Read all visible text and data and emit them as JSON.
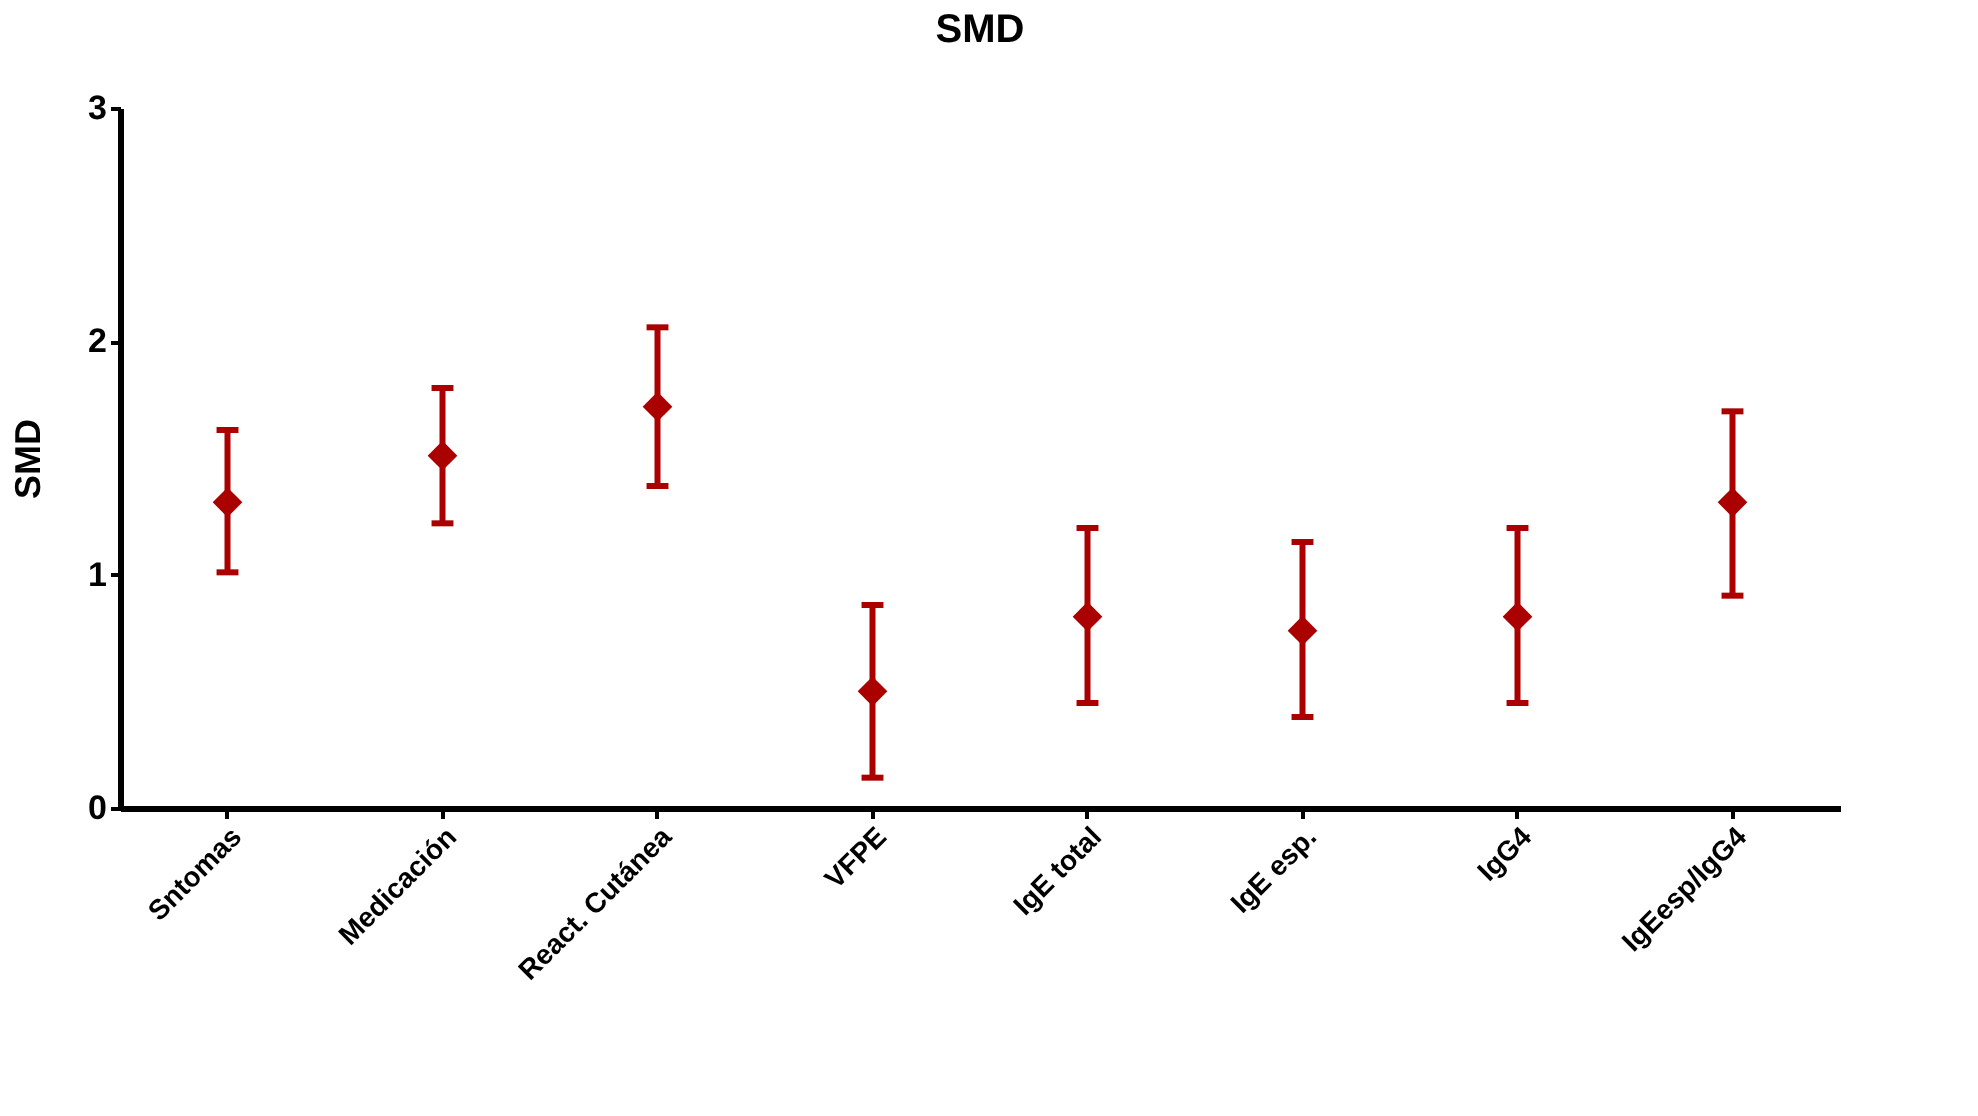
{
  "chart_data": {
    "type": "scatter",
    "title": "SMD",
    "ylabel": "SMD",
    "categories": [
      "Sntomas",
      "Medicación",
      "React. Cutánea",
      "VFPE",
      "IgE total",
      "IgE esp.",
      "IgG4",
      "IgEesp/IgG4"
    ],
    "series": [
      {
        "color": "#aa0000",
        "values": [
          1.31,
          1.51,
          1.72,
          0.5,
          0.82,
          0.76,
          0.82,
          1.31
        ],
        "errors": [
          [
            1.01,
            1.62
          ],
          [
            1.22,
            1.8
          ],
          [
            1.38,
            2.06
          ],
          [
            0.13,
            0.87
          ],
          [
            0.45,
            1.2
          ],
          [
            0.39,
            1.14
          ],
          [
            0.45,
            1.2
          ],
          [
            0.91,
            1.7
          ]
        ]
      }
    ],
    "ylim": [
      0,
      3
    ],
    "yticks": [
      0,
      1,
      2,
      3
    ],
    "marker": "diamond",
    "grid": false,
    "legend": false
  }
}
